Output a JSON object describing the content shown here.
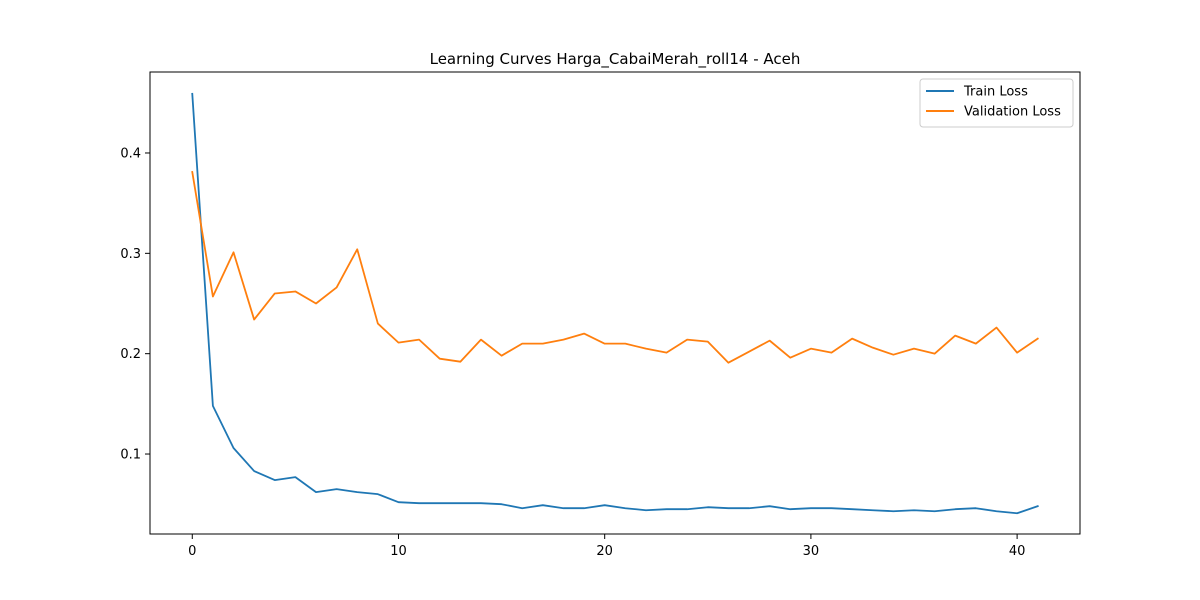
{
  "chart_data": {
    "type": "line",
    "title": "Learning Curves Harga_CabaiMerah_roll14 - Aceh",
    "xlabel": "",
    "ylabel": "",
    "xlim": [
      -2.05,
      43.05
    ],
    "ylim": [
      0.0203,
      0.4807
    ],
    "x_ticks": [
      0,
      10,
      20,
      30,
      40
    ],
    "y_ticks": [
      0.1,
      0.2,
      0.3,
      0.4
    ],
    "grid": false,
    "legend_position": "top-right",
    "x": [
      0,
      1,
      2,
      3,
      4,
      5,
      6,
      7,
      8,
      9,
      10,
      11,
      12,
      13,
      14,
      15,
      16,
      17,
      18,
      19,
      20,
      21,
      22,
      23,
      24,
      25,
      26,
      27,
      28,
      29,
      30,
      31,
      32,
      33,
      34,
      35,
      36,
      37,
      38,
      39,
      40,
      41
    ],
    "series": [
      {
        "name": "Train Loss",
        "color": "#1f77b4",
        "values": [
          0.459,
          0.148,
          0.106,
          0.083,
          0.074,
          0.077,
          0.062,
          0.065,
          0.062,
          0.06,
          0.052,
          0.051,
          0.051,
          0.051,
          0.051,
          0.05,
          0.046,
          0.049,
          0.046,
          0.046,
          0.049,
          0.046,
          0.044,
          0.045,
          0.045,
          0.047,
          0.046,
          0.046,
          0.048,
          0.045,
          0.046,
          0.046,
          0.045,
          0.044,
          0.043,
          0.044,
          0.043,
          0.045,
          0.046,
          0.043,
          0.041,
          0.048
        ]
      },
      {
        "name": "Validation Loss",
        "color": "#ff7f0e",
        "values": [
          0.381,
          0.257,
          0.301,
          0.234,
          0.26,
          0.262,
          0.25,
          0.266,
          0.304,
          0.23,
          0.211,
          0.214,
          0.195,
          0.192,
          0.214,
          0.198,
          0.21,
          0.21,
          0.214,
          0.22,
          0.21,
          0.21,
          0.205,
          0.201,
          0.214,
          0.212,
          0.191,
          0.202,
          0.213,
          0.196,
          0.205,
          0.201,
          0.215,
          0.206,
          0.199,
          0.205,
          0.2,
          0.218,
          0.21,
          0.226,
          0.201,
          0.215
        ]
      }
    ]
  }
}
